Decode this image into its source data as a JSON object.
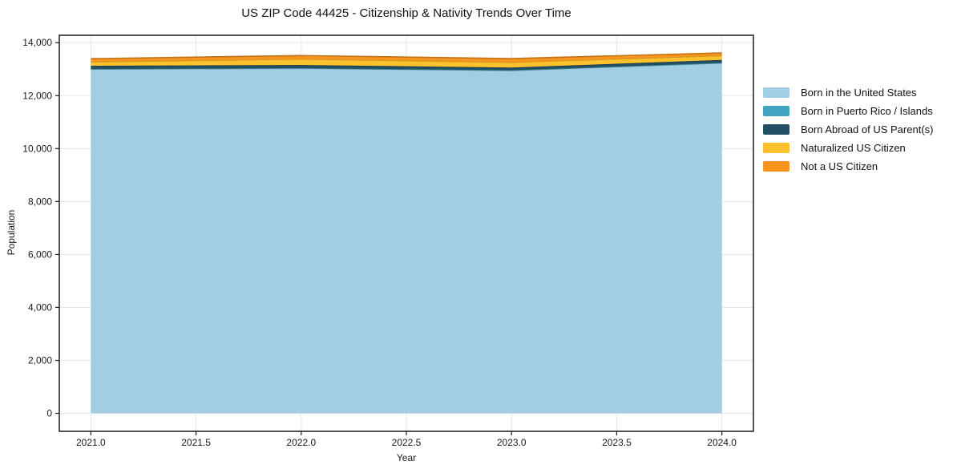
{
  "title": "US ZIP Code 44425 - Citizenship & Nativity Trends Over Time",
  "chart_data": {
    "type": "area",
    "stacked": true,
    "title": "US ZIP Code 44425 - Citizenship & Nativity Trends Over Time",
    "xlabel": "Year",
    "ylabel": "Population",
    "x": [
      2021,
      2022,
      2023,
      2024
    ],
    "series": [
      {
        "name": "Born in the United States",
        "color": "#a2cee5",
        "values": [
          13000,
          13030,
          12950,
          13230
        ]
      },
      {
        "name": "Born in Puerto Rico / Islands",
        "color": "#41a6c2",
        "values": [
          10,
          10,
          10,
          10
        ]
      },
      {
        "name": "Born Abroad of US Parent(s)",
        "color": "#224f63",
        "values": [
          115,
          120,
          100,
          110
        ]
      },
      {
        "name": "Naturalized US Citizen",
        "color": "#fcc22d",
        "values": [
          150,
          225,
          200,
          160
        ]
      },
      {
        "name": "Not a US Citizen",
        "color": "#f7941e",
        "values": [
          120,
          130,
          140,
          105
        ]
      }
    ],
    "xlim": [
      2020.85,
      2024.15
    ],
    "ylim": [
      -680,
      14280
    ],
    "x_ticks": [
      2021.0,
      2021.5,
      2022.0,
      2022.5,
      2023.0,
      2023.5,
      2024.0
    ],
    "x_tick_labels": [
      "2021.0",
      "2021.5",
      "2022.0",
      "2022.5",
      "2023.0",
      "2023.5",
      "2024.0"
    ],
    "y_ticks": [
      0,
      2000,
      4000,
      6000,
      8000,
      10000,
      12000,
      14000
    ],
    "y_tick_labels": [
      "0",
      "2,000",
      "4,000",
      "6,000",
      "8,000",
      "10,000",
      "12,000",
      "14,000"
    ],
    "grid": true,
    "legend_position": "right",
    "colors": {
      "grid": "#e7e7e7",
      "spine": "#1a1a1a",
      "text": "#1a1a1a",
      "background": "#ffffff"
    }
  }
}
